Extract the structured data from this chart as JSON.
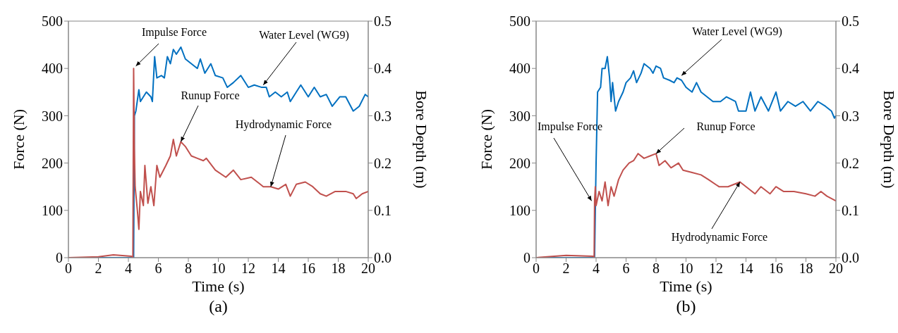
{
  "chart_data": [
    {
      "type": "line",
      "title": "(a)",
      "xlabel": "Time (s)",
      "ylabel": "Force (N)",
      "y2label": "Bore Depth (m)",
      "xlim": [
        0,
        20
      ],
      "xticks": [
        0,
        2,
        4,
        6,
        8,
        10,
        12,
        14,
        16,
        18,
        20
      ],
      "ylim": [
        0,
        500
      ],
      "yticks": [
        0,
        100,
        200,
        300,
        400,
        500
      ],
      "y2lim": [
        0,
        0.5
      ],
      "y2ticks": [
        {
          "value": 0,
          "label": "0.0"
        },
        0.1,
        0.2,
        0.3,
        0.4,
        0.5
      ],
      "grid": false,
      "legend": false,
      "annotations": [
        {
          "text": "Impulse Force",
          "x": 4.5,
          "y": 405
        },
        {
          "text": "Water Level (WG9)",
          "x": 13.0,
          "y": 365
        },
        {
          "text": "Runup Force",
          "x": 7.5,
          "y": 245
        },
        {
          "text": "Hydrodynamic Force",
          "x": 13.5,
          "y": 150
        }
      ],
      "series": [
        {
          "color": "#c0504d",
          "x": [
            0,
            2,
            3,
            4.2,
            4.3,
            4.35,
            4.4,
            4.45,
            4.6,
            4.7,
            4.8,
            5.0,
            5.1,
            5.3,
            5.5,
            5.7,
            5.9,
            6.1,
            6.5,
            6.8,
            7.0,
            7.2,
            7.5,
            7.8,
            8.2,
            8.6,
            9.0,
            9.2,
            9.8,
            10.5,
            11.0,
            11.5,
            12.2,
            12.8,
            13.0,
            13.5,
            14.0,
            14.5,
            14.8,
            15.2,
            15.8,
            16.3,
            16.8,
            17.2,
            17.8,
            18.5,
            19.0,
            19.2,
            19.6,
            20
          ],
          "values": [
            0,
            2,
            6,
            3,
            0,
            400,
            230,
            150,
            100,
            60,
            140,
            110,
            195,
            115,
            150,
            110,
            195,
            170,
            195,
            215,
            250,
            215,
            245,
            235,
            215,
            210,
            205,
            210,
            185,
            170,
            185,
            165,
            170,
            155,
            150,
            150,
            145,
            155,
            130,
            155,
            160,
            150,
            135,
            130,
            140,
            140,
            135,
            125,
            135,
            140
          ]
        },
        {
          "color": "#0070c0",
          "axis": "y2",
          "x": [
            0,
            4.35,
            4.4,
            4.5,
            4.7,
            4.8,
            5.0,
            5.2,
            5.5,
            5.6,
            5.75,
            5.9,
            6.2,
            6.4,
            6.6,
            6.8,
            7.0,
            7.2,
            7.5,
            7.8,
            8.2,
            8.6,
            8.8,
            9.1,
            9.5,
            9.8,
            10.3,
            10.6,
            11.0,
            11.5,
            12.0,
            12.4,
            12.9,
            13.2,
            13.4,
            13.8,
            14.2,
            14.6,
            14.8,
            15.2,
            15.5,
            16.0,
            16.4,
            16.8,
            17.2,
            17.6,
            18.1,
            18.5,
            19.0,
            19.4,
            19.8,
            20
          ],
          "values": [
            0,
            0,
            0.3,
            0.31,
            0.355,
            0.33,
            0.34,
            0.35,
            0.34,
            0.33,
            0.425,
            0.38,
            0.385,
            0.38,
            0.425,
            0.41,
            0.44,
            0.43,
            0.445,
            0.42,
            0.41,
            0.4,
            0.42,
            0.39,
            0.41,
            0.385,
            0.38,
            0.36,
            0.37,
            0.385,
            0.36,
            0.365,
            0.36,
            0.36,
            0.34,
            0.35,
            0.34,
            0.35,
            0.33,
            0.35,
            0.365,
            0.34,
            0.36,
            0.34,
            0.345,
            0.32,
            0.34,
            0.34,
            0.31,
            0.32,
            0.345,
            0.34
          ]
        }
      ]
    },
    {
      "type": "line",
      "title": "(b)",
      "xlabel": "Time (s)",
      "ylabel": "Force (N)",
      "y2label": "Bore Depth (m)",
      "xlim": [
        0,
        20
      ],
      "xticks": [
        0,
        2,
        4,
        6,
        8,
        10,
        12,
        14,
        16,
        18,
        20
      ],
      "ylim": [
        0,
        500
      ],
      "yticks": [
        0,
        100,
        200,
        300,
        400,
        500
      ],
      "y2lim": [
        0,
        0.5
      ],
      "y2ticks": [
        {
          "value": 0,
          "label": "0.0"
        },
        0.1,
        0.2,
        0.3,
        0.4,
        0.5
      ],
      "grid": false,
      "legend": false,
      "annotations": [
        {
          "text": "Water Level (WG9)",
          "x": 9.7,
          "y": 385
        },
        {
          "text": "Impulse Force",
          "x": 3.7,
          "y": 120
        },
        {
          "text": "Runup Force",
          "x": 8.0,
          "y": 220
        },
        {
          "text": "Hydrodynamic Force",
          "x": 13.6,
          "y": 160
        }
      ],
      "series": [
        {
          "color": "#c0504d",
          "x": [
            0,
            2,
            3.8,
            3.87,
            3.9,
            3.95,
            4.0,
            4.2,
            4.4,
            4.6,
            4.8,
            5.0,
            5.2,
            5.5,
            5.8,
            6.2,
            6.5,
            6.8,
            7.2,
            7.6,
            8.0,
            8.2,
            8.6,
            9.0,
            9.5,
            9.8,
            10.4,
            11.0,
            11.5,
            12.2,
            12.8,
            13.6,
            14.2,
            14.6,
            15.0,
            15.6,
            16.0,
            16.5,
            17.2,
            18.0,
            18.6,
            19.0,
            19.4,
            20
          ],
          "values": [
            0,
            5,
            3,
            0,
            120,
            150,
            110,
            140,
            120,
            160,
            110,
            150,
            130,
            165,
            185,
            200,
            205,
            220,
            210,
            215,
            220,
            195,
            205,
            190,
            200,
            185,
            180,
            175,
            165,
            150,
            150,
            160,
            145,
            135,
            150,
            135,
            150,
            140,
            140,
            135,
            130,
            140,
            130,
            120
          ]
        },
        {
          "color": "#0070c0",
          "axis": "y2",
          "x": [
            0,
            3.9,
            4.0,
            4.1,
            4.3,
            4.4,
            4.6,
            4.75,
            4.9,
            5.0,
            5.1,
            5.3,
            5.5,
            5.8,
            6.0,
            6.3,
            6.5,
            6.7,
            7.0,
            7.2,
            7.6,
            7.8,
            8.0,
            8.3,
            8.5,
            8.9,
            9.2,
            9.4,
            9.7,
            10.0,
            10.4,
            10.7,
            11.0,
            11.4,
            11.8,
            12.3,
            12.7,
            13.3,
            13.5,
            14.0,
            14.3,
            14.6,
            15.0,
            15.5,
            16.0,
            16.3,
            16.8,
            17.3,
            17.8,
            18.3,
            18.8,
            19.3,
            19.7,
            19.9,
            20
          ],
          "values": [
            0,
            0,
            0.2,
            0.35,
            0.36,
            0.4,
            0.4,
            0.425,
            0.38,
            0.33,
            0.37,
            0.31,
            0.33,
            0.35,
            0.37,
            0.38,
            0.395,
            0.37,
            0.39,
            0.41,
            0.4,
            0.39,
            0.405,
            0.4,
            0.38,
            0.375,
            0.37,
            0.38,
            0.375,
            0.36,
            0.35,
            0.37,
            0.35,
            0.34,
            0.33,
            0.33,
            0.34,
            0.33,
            0.31,
            0.31,
            0.35,
            0.31,
            0.34,
            0.31,
            0.35,
            0.31,
            0.33,
            0.32,
            0.33,
            0.31,
            0.33,
            0.32,
            0.31,
            0.295,
            0.3
          ]
        }
      ]
    }
  ]
}
